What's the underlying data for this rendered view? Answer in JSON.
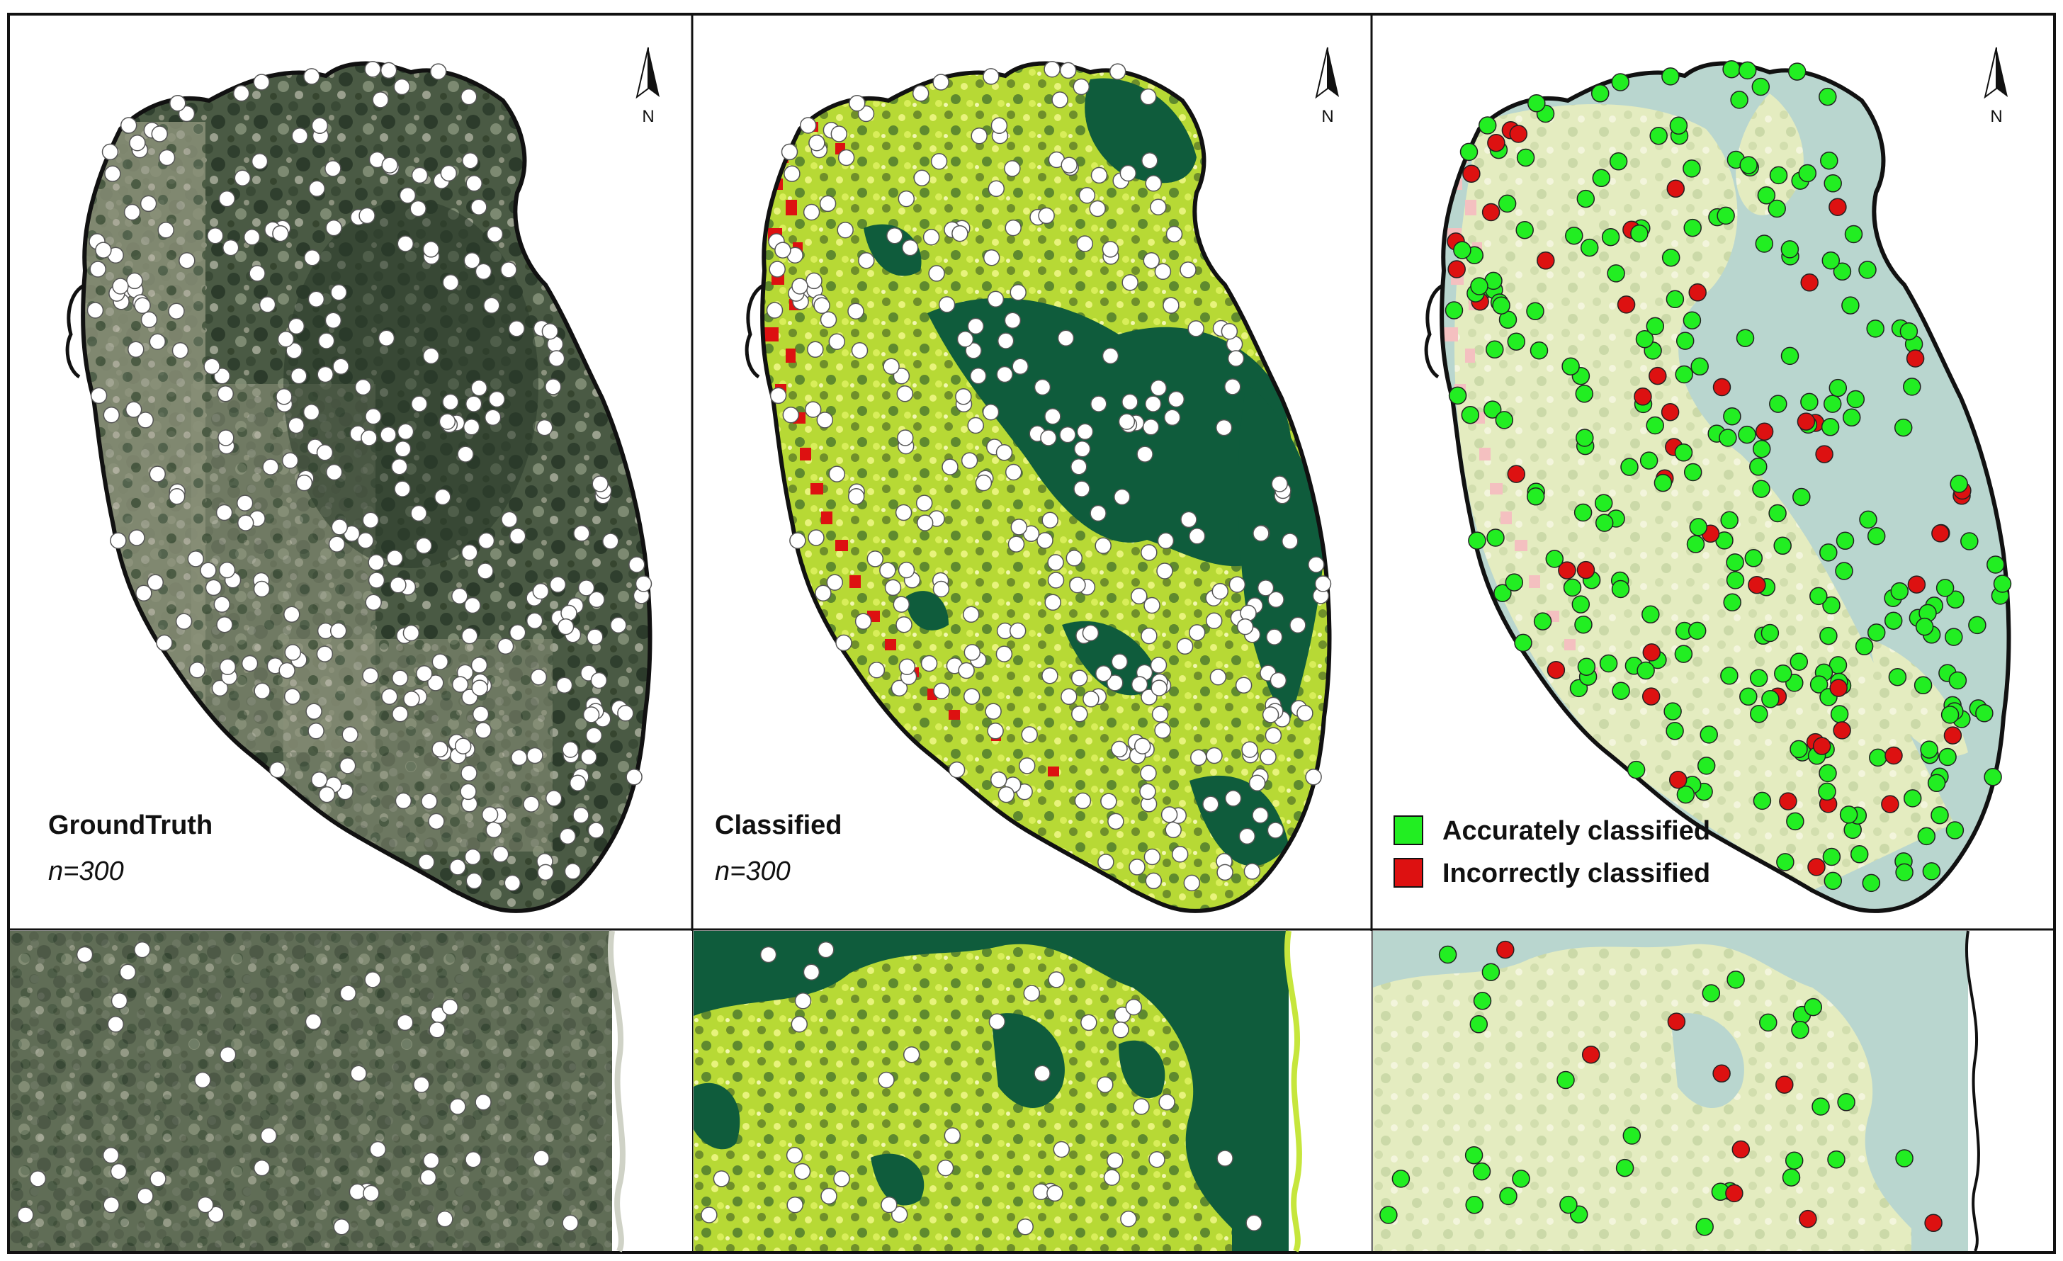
{
  "panels": [
    {
      "id": "ground-truth",
      "title": "GroundTruth",
      "count": "n=300"
    },
    {
      "id": "classified",
      "title": "Classified",
      "count": "n=300"
    },
    {
      "id": "accuracy",
      "title": "",
      "count": ""
    }
  ],
  "north_label": "N",
  "legend": [
    {
      "label": "Accurately classified",
      "color": "#22ee22"
    },
    {
      "label": "Incorrectly classified",
      "color": "#dd1111"
    }
  ],
  "colors": {
    "imagery_dark": "#3b4b3a",
    "imagery_mid": "#6d7a62",
    "class_forest": "#0f5c3c",
    "class_veg": "#c6e63c",
    "class_bright": "#e9f28a",
    "class_built": "#dd1111",
    "accuracy_bg": "#b8d6cf",
    "accuracy_veg": "#e6eec6",
    "accuracy_built": "#f4c0c0",
    "point_white": "#ffffff",
    "point_correct": "#22ee22",
    "point_wrong": "#dd1111"
  },
  "sample_points": 300
}
